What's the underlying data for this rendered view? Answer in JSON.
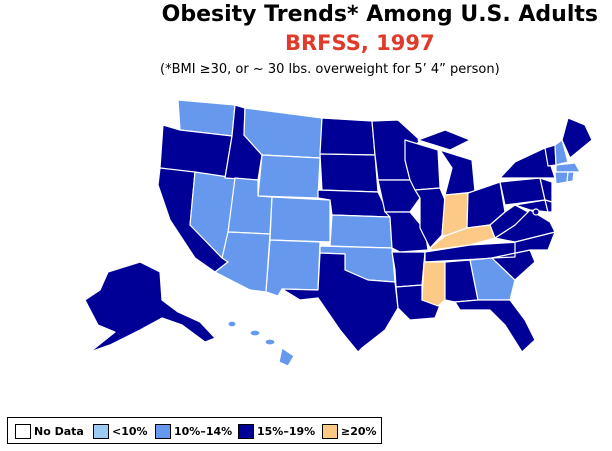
{
  "title": "Obesity Trends*  Among U.S. Adults",
  "subtitle": "BRFSS, 1997",
  "note": "(*BMI ≥30, or ~ 30 lbs. overweight for 5’ 4” person)",
  "colors": {
    "subtitle": "#e03a2a",
    "no_data": "#ffffff",
    "lt10": "#9ccbf4",
    "10_14": "#6699ee",
    "15_19": "#000096",
    "ge20": "#fcc987",
    "border": "#ffffff"
  },
  "legend": [
    {
      "key": "no_data",
      "label": "No Data"
    },
    {
      "key": "lt10",
      "label": "<10%"
    },
    {
      "key": "10_14",
      "label": "10%–14%"
    },
    {
      "key": "15_19",
      "label": "15%–19%"
    },
    {
      "key": "ge20",
      "label": "≥20%"
    }
  ],
  "states": {
    "WA": "10_14",
    "OR": "15_19",
    "CA": "15_19",
    "NV": "10_14",
    "ID": "15_19",
    "MT": "10_14",
    "WY": "10_14",
    "UT": "10_14",
    "AZ": "10_14",
    "CO": "10_14",
    "NM": "10_14",
    "ND": "15_19",
    "SD": "15_19",
    "NE": "15_19",
    "KS": "10_14",
    "OK": "10_14",
    "TX": "15_19",
    "MN": "15_19",
    "IA": "15_19",
    "MO": "15_19",
    "AR": "15_19",
    "LA": "15_19",
    "WI": "15_19",
    "IL": "15_19",
    "MI": "15_19",
    "IN": "ge20",
    "OH": "15_19",
    "KY": "ge20",
    "TN": "15_19",
    "MS": "ge20",
    "AL": "15_19",
    "GA": "10_14",
    "FL": "15_19",
    "SC": "15_19",
    "NC": "15_19",
    "VA": "15_19",
    "WV": "15_19",
    "PA": "15_19",
    "NY": "15_19",
    "VT": "15_19",
    "NH": "10_14",
    "ME": "15_19",
    "MA": "10_14",
    "RI": "10_14",
    "CT": "10_14",
    "NJ": "15_19",
    "DE": "15_19",
    "MD": "15_19",
    "DC": "15_19",
    "AK": "15_19",
    "HI": "10_14"
  }
}
